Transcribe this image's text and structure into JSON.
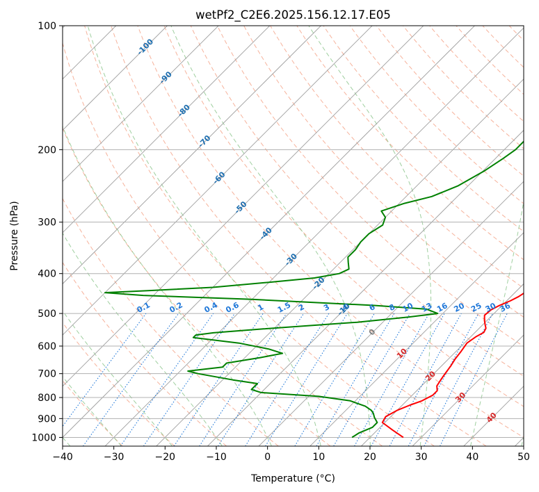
{
  "chart_data": {
    "type": "line",
    "subtype": "skew-T log-P diagram",
    "title": "wetPf2_C2E6.2025.156.12.17.E05",
    "xlabel": "Temperature (°C)",
    "ylabel": "Pressure (hPa)",
    "xlim": [
      -40,
      50
    ],
    "ylim": [
      1050,
      100
    ],
    "y_scale": "log",
    "grid": true,
    "x_ticks": [
      -40,
      -30,
      -20,
      -10,
      0,
      10,
      20,
      30,
      40,
      50
    ],
    "y_ticks": [
      100,
      200,
      300,
      400,
      500,
      600,
      700,
      800,
      900,
      1000
    ],
    "series": [
      {
        "color": "#ff0000",
        "points": [
          [
            26.5,
            1000
          ],
          [
            23.0,
            960
          ],
          [
            19.5,
            920
          ],
          [
            19.0,
            890
          ],
          [
            20.0,
            860
          ],
          [
            21.5,
            835
          ],
          [
            23.0,
            815
          ],
          [
            24.0,
            790
          ],
          [
            24.0,
            770
          ],
          [
            23.0,
            750
          ],
          [
            22.5,
            720
          ],
          [
            22.2,
            700
          ],
          [
            21.8,
            670
          ],
          [
            21.3,
            645
          ],
          [
            21.0,
            620
          ],
          [
            20.5,
            590
          ],
          [
            21.0,
            570
          ],
          [
            21.7,
            556
          ],
          [
            21.3,
            543
          ],
          [
            20.5,
            533
          ],
          [
            19.5,
            520
          ],
          [
            18.5,
            505
          ],
          [
            18.7,
            490
          ],
          [
            19.5,
            478
          ],
          [
            20.7,
            466
          ],
          [
            21.5,
            455
          ],
          [
            22.0,
            443
          ],
          [
            21.5,
            432
          ],
          [
            20.7,
            420
          ],
          [
            19.8,
            405
          ],
          [
            18.5,
            385
          ],
          [
            17.0,
            365
          ],
          [
            15.0,
            345
          ],
          [
            12.5,
            325
          ],
          [
            10.0,
            305
          ],
          [
            7.0,
            283
          ],
          [
            4.0,
            263
          ],
          [
            1.0,
            240
          ],
          [
            -1.5,
            220
          ],
          [
            -3.7,
            200
          ],
          [
            -6.0,
            180
          ],
          [
            -8.0,
            170
          ],
          [
            -9.5,
            162
          ],
          [
            -10.2,
            155
          ],
          [
            -10.3,
            150
          ],
          [
            -10.0,
            147
          ],
          [
            -9.0,
            144
          ],
          [
            -8.2,
            140
          ],
          [
            -8.5,
            133
          ],
          [
            -9.0,
            127
          ],
          [
            -9.2,
            121
          ],
          [
            -9.0,
            115
          ],
          [
            -9.0,
            110
          ],
          [
            -9.5,
            105
          ],
          [
            -10.0,
            100
          ]
        ]
      },
      {
        "color": "#008000",
        "points": [
          [
            16.5,
            1000
          ],
          [
            17.0,
            975
          ],
          [
            18.5,
            945
          ],
          [
            18.5,
            920
          ],
          [
            17.0,
            895
          ],
          [
            16.0,
            875
          ],
          [
            15.0,
            860
          ],
          [
            13.0,
            840
          ],
          [
            9.0,
            815
          ],
          [
            2.0,
            795
          ],
          [
            -10.0,
            778
          ],
          [
            -12.5,
            765
          ],
          [
            -12.5,
            740
          ],
          [
            -18.0,
            725
          ],
          [
            -26.0,
            700
          ],
          [
            -28.5,
            690
          ],
          [
            -22.5,
            675
          ],
          [
            -22.5,
            660
          ],
          [
            -17.0,
            640
          ],
          [
            -13.5,
            625
          ],
          [
            -17.0,
            610
          ],
          [
            -24.0,
            590
          ],
          [
            -34.0,
            572
          ],
          [
            -34.0,
            564
          ],
          [
            -31.0,
            557
          ],
          [
            -22.0,
            545
          ],
          [
            -5.0,
            525
          ],
          [
            4.0,
            510
          ],
          [
            9.0,
            500
          ],
          [
            6.0,
            488
          ],
          [
            -5.0,
            478
          ],
          [
            -30.0,
            462
          ],
          [
            -52.0,
            452
          ],
          [
            -60.0,
            445
          ],
          [
            -52.0,
            440
          ],
          [
            -40.0,
            432
          ],
          [
            -30.0,
            420
          ],
          [
            -22.0,
            410
          ],
          [
            -18.0,
            400
          ],
          [
            -17.0,
            390
          ],
          [
            -18.5,
            375
          ],
          [
            -19.5,
            365
          ],
          [
            -19.5,
            350
          ],
          [
            -20.0,
            335
          ],
          [
            -20.0,
            320
          ],
          [
            -19.0,
            305
          ],
          [
            -20.0,
            292
          ],
          [
            -22.0,
            282
          ],
          [
            -19.0,
            270
          ],
          [
            -15.0,
            260
          ],
          [
            -12.0,
            245
          ],
          [
            -9.7,
            225
          ],
          [
            -8.5,
            210
          ],
          [
            -7.8,
            200
          ],
          [
            -7.8,
            190
          ],
          [
            -8.5,
            180
          ],
          [
            -10.0,
            165
          ],
          [
            -11.5,
            150
          ],
          [
            -13.0,
            140
          ],
          [
            -14.5,
            133
          ],
          [
            -16.5,
            128
          ],
          [
            -17.5,
            122
          ],
          [
            -17.5,
            116
          ],
          [
            -16.0,
            111
          ],
          [
            -15.0,
            107
          ],
          [
            -15.0,
            104
          ],
          [
            -15.5,
            100
          ]
        ]
      }
    ],
    "dry_adiabats": [
      -30,
      -20,
      -10,
      0,
      10,
      20,
      30,
      40,
      50,
      60,
      70,
      80,
      90,
      100,
      110,
      120,
      130,
      140,
      150,
      160,
      170,
      180,
      190,
      200,
      210,
      220
    ],
    "moist_adiabats": [
      -40,
      -30,
      -20,
      -10,
      0,
      10,
      20,
      30,
      40,
      50
    ],
    "mixing_ratio_lines": [
      0.1,
      0.2,
      0.4,
      0.6,
      1,
      1.5,
      2,
      3,
      4,
      6,
      8,
      10,
      13,
      16,
      20,
      25,
      30,
      36
    ],
    "annotations": {
      "blue_isotherm_labels": [
        "-100",
        "-90",
        "-80",
        "-70",
        "-60",
        "-50",
        "-40",
        "-30",
        "-20",
        "-10"
      ],
      "gray_isotherm_labels": [
        "0"
      ],
      "red_isotherm_labels": [
        "10",
        "20",
        "30",
        "40"
      ],
      "mixing_ratio_labels": [
        "0.1",
        "0.2",
        "0.4",
        "0.6",
        "1",
        "1.5",
        "2",
        "3",
        "4",
        "6",
        "8",
        "10",
        "13",
        "16",
        "20",
        "25",
        "30",
        "36"
      ]
    },
    "colors": {
      "temperature": "#ff0000",
      "dewpoint": "#008000",
      "isotherm": "#a0a0a0",
      "isobar": "#b0b0b0",
      "dry_adiabat": "#f4a58a",
      "moist_adiabat": "#7fbf7f",
      "mixing_ratio": "#1f77d8",
      "cold_label": "#1f6fb0",
      "zero_label": "#808080",
      "warm_label": "#d62728"
    }
  }
}
